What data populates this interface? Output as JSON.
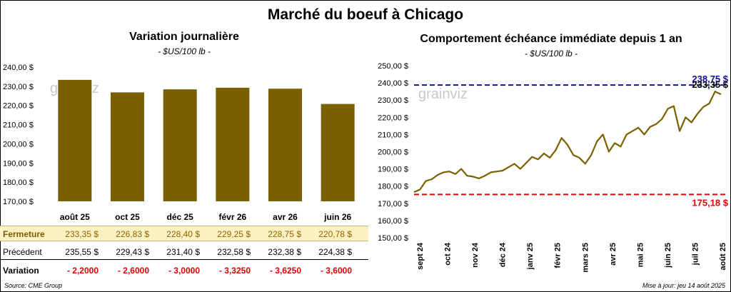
{
  "title": "Marché du boeuf à Chicago",
  "source": "Source: CME Group",
  "update": "Mise à jour: jeu 14 août 2025",
  "watermark": "grainviz",
  "colors": {
    "bar": "#7a6000",
    "line": "#7a6000",
    "upper": "#1010a0",
    "lower": "#e80000"
  },
  "chart_data": [
    {
      "type": "bar",
      "title": "Variation journalière",
      "subtitle": "- $US/100 lb -",
      "categories": [
        "août 25",
        "oct 25",
        "déc 25",
        "févr 26",
        "avr 26",
        "juin 26"
      ],
      "values": [
        233.35,
        226.83,
        228.4,
        229.25,
        228.75,
        220.78
      ],
      "ylim": [
        170,
        240
      ],
      "yticks": [
        "170,00 $",
        "180,00 $",
        "190,00 $",
        "200,00 $",
        "210,00 $",
        "220,00 $",
        "230,00 $",
        "240,00 $"
      ],
      "grid": false
    },
    {
      "type": "line",
      "title": "Comportement échéance immédiate depuis 1 an",
      "subtitle": "- $US/100 lb -",
      "ylim": [
        150,
        250
      ],
      "yticks": [
        "150,00 $",
        "160,00 $",
        "170,00 $",
        "180,00 $",
        "190,00 $",
        "200,00 $",
        "210,00 $",
        "220,00 $",
        "230,00 $",
        "240,00 $",
        "250,00 $"
      ],
      "xticks": [
        "sept 24",
        "oct 24",
        "nov 24",
        "déc 24",
        "janv 25",
        "févr 25",
        "mars 25",
        "avr 25",
        "mai 25",
        "juin 25",
        "juil 25",
        "août 25"
      ],
      "x": [
        "2024-08-15",
        "2024-08-22",
        "2024-08-29",
        "2024-09-05",
        "2024-09-12",
        "2024-09-19",
        "2024-09-26",
        "2024-10-03",
        "2024-10-10",
        "2024-10-17",
        "2024-10-24",
        "2024-10-31",
        "2024-11-07",
        "2024-11-14",
        "2024-11-21",
        "2024-11-28",
        "2024-12-05",
        "2024-12-12",
        "2024-12-19",
        "2024-12-26",
        "2025-01-02",
        "2025-01-09",
        "2025-01-16",
        "2025-01-23",
        "2025-01-30",
        "2025-02-06",
        "2025-02-13",
        "2025-02-20",
        "2025-02-27",
        "2025-03-06",
        "2025-03-13",
        "2025-03-20",
        "2025-03-27",
        "2025-04-03",
        "2025-04-10",
        "2025-04-17",
        "2025-04-24",
        "2025-05-01",
        "2025-05-08",
        "2025-05-15",
        "2025-05-22",
        "2025-05-29",
        "2025-06-05",
        "2025-06-12",
        "2025-06-19",
        "2025-06-26",
        "2025-07-03",
        "2025-07-10",
        "2025-07-17",
        "2025-07-24",
        "2025-07-31",
        "2025-08-07",
        "2025-08-14"
      ],
      "series": [
        {
          "values": [
            176.5,
            178.0,
            183.0,
            184.0,
            186.5,
            188.0,
            188.5,
            187.0,
            190.0,
            186.0,
            185.5,
            184.5,
            186.0,
            188.0,
            188.5,
            189.0,
            191.0,
            193.0,
            190.0,
            193.5,
            197.0,
            195.5,
            199.0,
            196.5,
            201.0,
            208.0,
            204.0,
            198.0,
            196.5,
            193.0,
            198.0,
            206.0,
            210.0,
            200.0,
            205.0,
            203.0,
            210.0,
            212.0,
            214.0,
            210.0,
            214.5,
            216.0,
            219.0,
            225.0,
            226.5,
            212.0,
            220.0,
            217.0,
            222.0,
            226.0,
            228.0,
            235.0,
            233.35
          ]
        }
      ],
      "references": [
        {
          "value": 238.75,
          "label": "238,75 $"
        },
        {
          "value": 175.18,
          "label": "175,18 $"
        }
      ],
      "last_label": "233,35 $"
    }
  ],
  "table": {
    "rows": [
      {
        "label": "Fermeture",
        "cells": [
          "233,35 $",
          "226,83 $",
          "228,40 $",
          "229,25 $",
          "228,75 $",
          "220,78 $"
        ]
      },
      {
        "label": "Précédent",
        "cells": [
          "235,55 $",
          "229,43 $",
          "231,40 $",
          "232,58 $",
          "232,38 $",
          "224,38 $"
        ]
      },
      {
        "label": "Variation",
        "cells": [
          "- 2,2000",
          "- 2,6000",
          "- 3,0000",
          "- 3,3250",
          "- 3,6250",
          "- 3,6000"
        ]
      }
    ]
  }
}
